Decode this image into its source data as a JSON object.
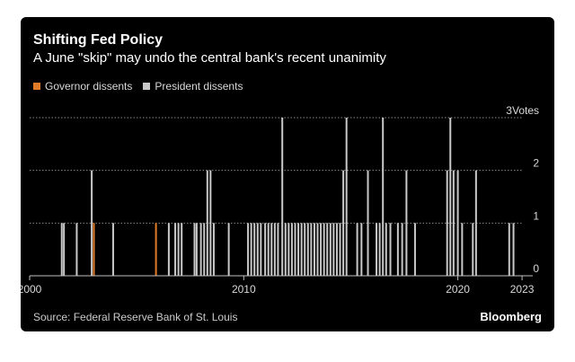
{
  "title": "Shifting Fed Policy",
  "subtitle": "A June \"skip\" may undo the central bank's recent unanimity",
  "source": "Source: Federal Reserve Bank of St. Louis",
  "brand": "Bloomberg",
  "colors": {
    "background": "#000000",
    "governor": "#e07b2a",
    "president": "#c8c8c8",
    "grid": "#8a8a8a",
    "text": "#d9d9d9"
  },
  "chart_data": {
    "type": "bar",
    "xlim": [
      2000,
      2023.5
    ],
    "ylim": [
      0,
      3
    ],
    "x_ticks": [
      2000,
      2010,
      2020,
      2023
    ],
    "y_ticks": [
      0,
      1,
      2,
      3
    ],
    "y_tick_labels": [
      "0",
      "1",
      "2",
      "3Votes"
    ],
    "grid": true,
    "legend_position": "top-left",
    "series": [
      {
        "name": "Governor dissents",
        "color": "#e07b2a",
        "points": [
          {
            "x": 2003.0,
            "y": 1
          },
          {
            "x": 2005.9,
            "y": 1
          }
        ]
      },
      {
        "name": "President dissents",
        "color": "#c8c8c8",
        "points": [
          {
            "x": 2001.5,
            "y": 1
          },
          {
            "x": 2001.6,
            "y": 1
          },
          {
            "x": 2002.2,
            "y": 1
          },
          {
            "x": 2002.9,
            "y": 2
          },
          {
            "x": 2003.9,
            "y": 1
          },
          {
            "x": 2006.5,
            "y": 1
          },
          {
            "x": 2006.8,
            "y": 1
          },
          {
            "x": 2006.95,
            "y": 1
          },
          {
            "x": 2007.1,
            "y": 1
          },
          {
            "x": 2007.7,
            "y": 1
          },
          {
            "x": 2007.8,
            "y": 1
          },
          {
            "x": 2008.0,
            "y": 1
          },
          {
            "x": 2008.15,
            "y": 1
          },
          {
            "x": 2008.3,
            "y": 2
          },
          {
            "x": 2008.45,
            "y": 2
          },
          {
            "x": 2008.6,
            "y": 1
          },
          {
            "x": 2009.3,
            "y": 1
          },
          {
            "x": 2010.2,
            "y": 1
          },
          {
            "x": 2010.35,
            "y": 1
          },
          {
            "x": 2010.5,
            "y": 1
          },
          {
            "x": 2010.65,
            "y": 1
          },
          {
            "x": 2010.8,
            "y": 1
          },
          {
            "x": 2011.0,
            "y": 1
          },
          {
            "x": 2011.15,
            "y": 1
          },
          {
            "x": 2011.3,
            "y": 1
          },
          {
            "x": 2011.45,
            "y": 1
          },
          {
            "x": 2011.6,
            "y": 1
          },
          {
            "x": 2011.8,
            "y": 3
          },
          {
            "x": 2011.95,
            "y": 1
          },
          {
            "x": 2012.1,
            "y": 1
          },
          {
            "x": 2012.25,
            "y": 1
          },
          {
            "x": 2012.4,
            "y": 1
          },
          {
            "x": 2012.55,
            "y": 1
          },
          {
            "x": 2012.7,
            "y": 1
          },
          {
            "x": 2012.85,
            "y": 1
          },
          {
            "x": 2013.0,
            "y": 1
          },
          {
            "x": 2013.15,
            "y": 1
          },
          {
            "x": 2013.3,
            "y": 1
          },
          {
            "x": 2013.45,
            "y": 1
          },
          {
            "x": 2013.6,
            "y": 1
          },
          {
            "x": 2013.75,
            "y": 1
          },
          {
            "x": 2013.9,
            "y": 1
          },
          {
            "x": 2014.05,
            "y": 1
          },
          {
            "x": 2014.2,
            "y": 1
          },
          {
            "x": 2014.35,
            "y": 1
          },
          {
            "x": 2014.5,
            "y": 1
          },
          {
            "x": 2014.65,
            "y": 2
          },
          {
            "x": 2014.8,
            "y": 3
          },
          {
            "x": 2015.3,
            "y": 1
          },
          {
            "x": 2015.5,
            "y": 1
          },
          {
            "x": 2015.8,
            "y": 2
          },
          {
            "x": 2016.2,
            "y": 1
          },
          {
            "x": 2016.35,
            "y": 1
          },
          {
            "x": 2016.5,
            "y": 3
          },
          {
            "x": 2016.65,
            "y": 1
          },
          {
            "x": 2016.85,
            "y": 1
          },
          {
            "x": 2017.2,
            "y": 1
          },
          {
            "x": 2017.4,
            "y": 1
          },
          {
            "x": 2017.6,
            "y": 2
          },
          {
            "x": 2018.0,
            "y": 1
          },
          {
            "x": 2019.5,
            "y": 2
          },
          {
            "x": 2019.65,
            "y": 3
          },
          {
            "x": 2019.8,
            "y": 2
          },
          {
            "x": 2020.0,
            "y": 2
          },
          {
            "x": 2020.2,
            "y": 1
          },
          {
            "x": 2020.7,
            "y": 1
          },
          {
            "x": 2020.85,
            "y": 2
          },
          {
            "x": 2022.4,
            "y": 1
          },
          {
            "x": 2022.6,
            "y": 1
          }
        ]
      }
    ]
  }
}
